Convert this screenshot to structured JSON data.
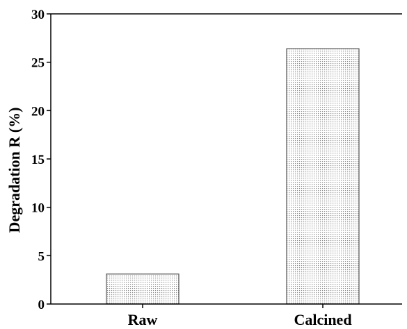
{
  "chart_data": {
    "type": "bar",
    "categories": [
      "Raw",
      "Calcined"
    ],
    "values": [
      3.1,
      26.4
    ],
    "title": "",
    "xlabel": "",
    "ylabel": "Degradation R (%)",
    "ylim": [
      0,
      30
    ],
    "yticks": [
      0,
      5,
      10,
      15,
      20,
      25,
      30
    ],
    "grid": false,
    "legend": "none",
    "bar_fill": "dotted-pattern",
    "bar_color": "#aaaaaa",
    "axis_color": "#000000"
  }
}
